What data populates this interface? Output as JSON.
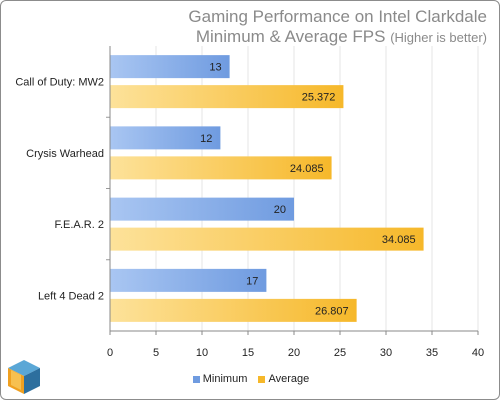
{
  "title": {
    "line1": "Gaming Performance on Intel Clarkdale",
    "line2_main": "Minimum & Average FPS ",
    "line2_note": "(Higher is better)"
  },
  "colors": {
    "minimum": "#6f9be0",
    "average": "#f6b82a"
  },
  "logo_icon": "cube-logo-icon",
  "chart_data": {
    "type": "bar",
    "orientation": "horizontal",
    "categories": [
      "Call of Duty: MW2",
      "Crysis Warhead",
      "F.E.A.R. 2",
      "Left 4 Dead 2"
    ],
    "series": [
      {
        "name": "Minimum",
        "values": [
          13,
          12,
          20,
          17
        ]
      },
      {
        "name": "Average",
        "values": [
          25.372,
          24.085,
          34.085,
          26.807
        ]
      }
    ],
    "value_labels": [
      [
        "13",
        "12",
        "20",
        "17"
      ],
      [
        "25.372",
        "24.085",
        "34.085",
        "26.807"
      ]
    ],
    "xlim": [
      0,
      40
    ],
    "xticks": [
      0,
      5,
      10,
      15,
      20,
      25,
      30,
      35,
      40
    ],
    "grid": true,
    "legend_position": "bottom"
  }
}
